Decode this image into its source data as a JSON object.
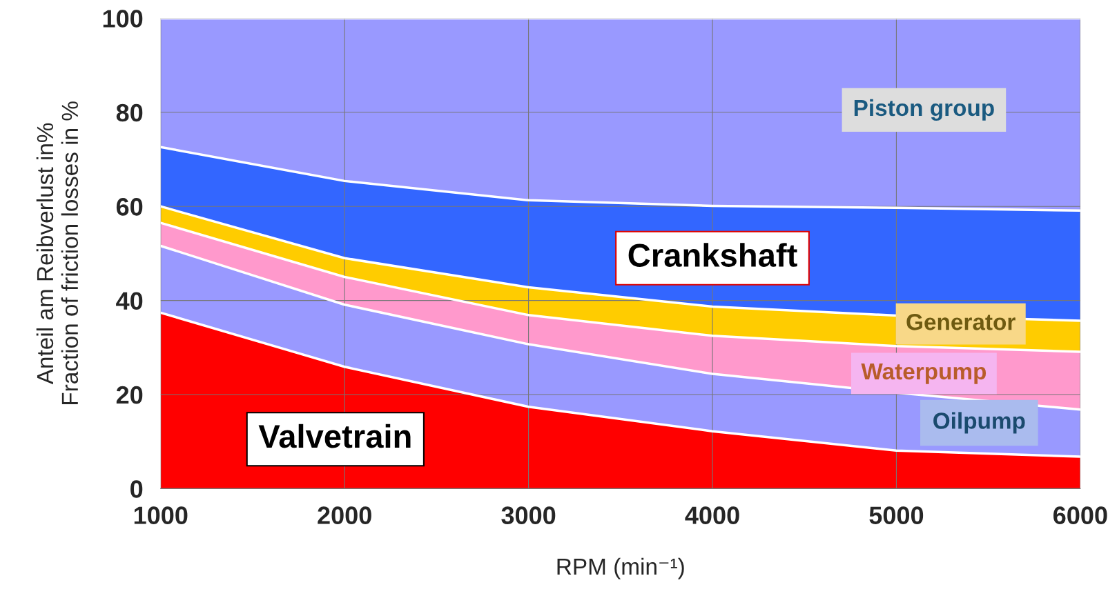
{
  "chart_data": {
    "type": "area",
    "stacked": true,
    "xlabel": "RPM (min⁻¹)",
    "ylabel": "Anteil am Reibverlust in%\nFraction of friction losses in %",
    "x": [
      1000,
      2000,
      3000,
      4000,
      5000,
      6000
    ],
    "series": [
      {
        "name": "Valvetrain",
        "color": "#ff0000",
        "values": [
          37.4,
          25.9,
          17.4,
          12.2,
          8.1,
          6.8
        ]
      },
      {
        "name": "Oilpump",
        "color": "#9999ff",
        "values": [
          14.2,
          13.2,
          13.3,
          12.2,
          12.3,
          10.0
        ]
      },
      {
        "name": "Waterpump",
        "color": "#ff99cc",
        "values": [
          4.9,
          5.9,
          6.2,
          8.1,
          9.9,
          12.3
        ]
      },
      {
        "name": "Generator",
        "color": "#ffcc00",
        "values": [
          3.5,
          4.0,
          5.9,
          6.2,
          6.5,
          6.6
        ]
      },
      {
        "name": "Crankshaft",
        "color": "#3366ff",
        "values": [
          12.6,
          16.4,
          18.5,
          21.4,
          22.9,
          23.4
        ]
      },
      {
        "name": "Piston group",
        "color": "#9999ff",
        "values": [
          27.4,
          34.6,
          38.7,
          39.9,
          40.3,
          40.9
        ]
      }
    ],
    "xlim": [
      1000,
      6000
    ],
    "xticks": [
      1000,
      2000,
      3000,
      4000,
      5000,
      6000
    ],
    "ylim": [
      0,
      100
    ],
    "yticks": [
      0,
      20,
      40,
      60,
      80,
      100
    ],
    "grid": true,
    "legend": false
  }
}
